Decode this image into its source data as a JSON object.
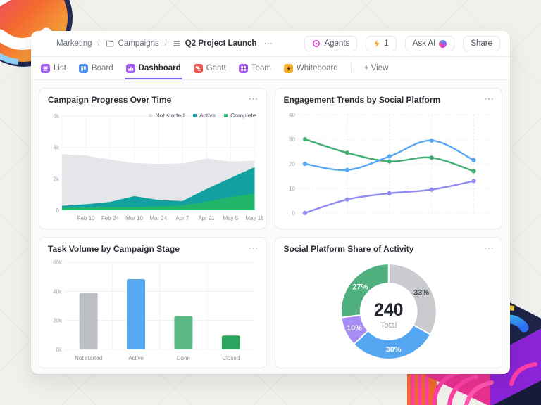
{
  "ui": {
    "accent": "#7b68ee",
    "more_dots": "⋯",
    "breadcrumb_separator": "/"
  },
  "breadcrumb": {
    "space_initial": "M",
    "space_color": "#2ba57f",
    "items": [
      "Marketing",
      "Campaigns",
      "Q2 Project Launch"
    ]
  },
  "header_actions": {
    "agents_label": "Agents",
    "automations_count": "1",
    "ask_ai_label": "Ask AI",
    "share_label": "Share"
  },
  "tabs": [
    {
      "label": "List",
      "icon": "list",
      "color": "#9f5cf0",
      "active": false
    },
    {
      "label": "Board",
      "icon": "board",
      "color": "#4a90f2",
      "active": false
    },
    {
      "label": "Dashboard",
      "icon": "dashboard",
      "color": "#9f5cf0",
      "active": true
    },
    {
      "label": "Gantt",
      "icon": "gantt",
      "color": "#ee5a52",
      "active": false
    },
    {
      "label": "Team",
      "icon": "team",
      "color": "#a55bf0",
      "active": false
    },
    {
      "label": "Whiteboard",
      "icon": "whiteboard",
      "color": "#f2b02c",
      "active": false
    },
    {
      "label": "+ View",
      "icon": null,
      "color": null,
      "active": false
    }
  ],
  "cards": [
    {
      "title": "Campaign Progress Over Time"
    },
    {
      "title": "Engagement Trends by Social Platform"
    },
    {
      "title": "Task Volume by Campaign Stage"
    },
    {
      "title": "Social Platform Share of Activity"
    }
  ],
  "chart_data": [
    {
      "type": "area",
      "title": "Campaign Progress Over Time",
      "stacked": true,
      "x_labels": [
        "",
        "Feb 10",
        "Feb 24",
        "Mar 10",
        "Mar 24",
        "Apr 7",
        "Apr 21",
        "May 5",
        "May 18"
      ],
      "ylim": [
        0,
        6000
      ],
      "yticks": [
        "0",
        "2k",
        "4k",
        "6k"
      ],
      "series": [
        {
          "name": "Complete",
          "color": "#20b56a",
          "values": [
            150,
            180,
            200,
            200,
            250,
            300,
            550,
            850,
            1050
          ]
        },
        {
          "name": "Active",
          "color": "#12a0a0",
          "values": [
            130,
            200,
            330,
            700,
            400,
            280,
            800,
            1200,
            1700
          ]
        },
        {
          "name": "Not started",
          "color": "#e4e6e9",
          "values": [
            3300,
            3100,
            2700,
            2100,
            2300,
            2400,
            1950,
            1050,
            400
          ]
        }
      ],
      "legend": [
        {
          "label": "Not started",
          "color": "#dcdee2"
        },
        {
          "label": "Active",
          "color": "#12a0a0"
        },
        {
          "label": "Complete",
          "color": "#20b56a"
        }
      ],
      "legend_position": "top-right",
      "grid": true
    },
    {
      "type": "line",
      "title": "Engagement Trends by Social Platform",
      "x": [
        1,
        2,
        3,
        4,
        5
      ],
      "x_labels": [],
      "ylim": [
        0,
        40
      ],
      "yticks": [
        "0",
        "10",
        "20",
        "30",
        "40"
      ],
      "series": [
        {
          "name": "green",
          "color": "#43ad76",
          "values": [
            30,
            24.5,
            21,
            22.5,
            17
          ]
        },
        {
          "name": "blue",
          "color": "#57a8f2",
          "values": [
            20,
            17.5,
            23,
            29.5,
            21.5
          ]
        },
        {
          "name": "purple",
          "color": "#9089f2",
          "values": [
            0,
            5.5,
            8,
            9.5,
            13
          ]
        }
      ],
      "grid": true,
      "grid_style": "dashed",
      "legend_position": "none"
    },
    {
      "type": "bar",
      "title": "Task Volume by Campaign Stage",
      "categories": [
        "Not started",
        "Active",
        "Done",
        "Closed"
      ],
      "values": [
        39000,
        48500,
        23000,
        9500
      ],
      "colors": [
        "#bcbfc3",
        "#57a8f2",
        "#5cb885",
        "#2aa45f"
      ],
      "ylim": [
        0,
        60000
      ],
      "yticks": [
        "0k",
        "20k",
        "40k",
        "60k"
      ],
      "grid": true
    },
    {
      "type": "donut",
      "title": "Social Platform Share of Activity",
      "total_value": "240",
      "total_label": "Total",
      "slices": [
        {
          "label": "33%",
          "value": 33,
          "color": "#c9cbce",
          "text_color": "#42464d"
        },
        {
          "label": "30%",
          "value": 30,
          "color": "#55a6f1",
          "text_color": "#ffffff"
        },
        {
          "label": "10%",
          "value": 10,
          "color": "#a78df5",
          "text_color": "#ffffff"
        },
        {
          "label": "27%",
          "value": 27,
          "color": "#4fb07e",
          "text_color": "#ffffff"
        }
      ],
      "start": "top",
      "direction": "clockwise"
    }
  ]
}
